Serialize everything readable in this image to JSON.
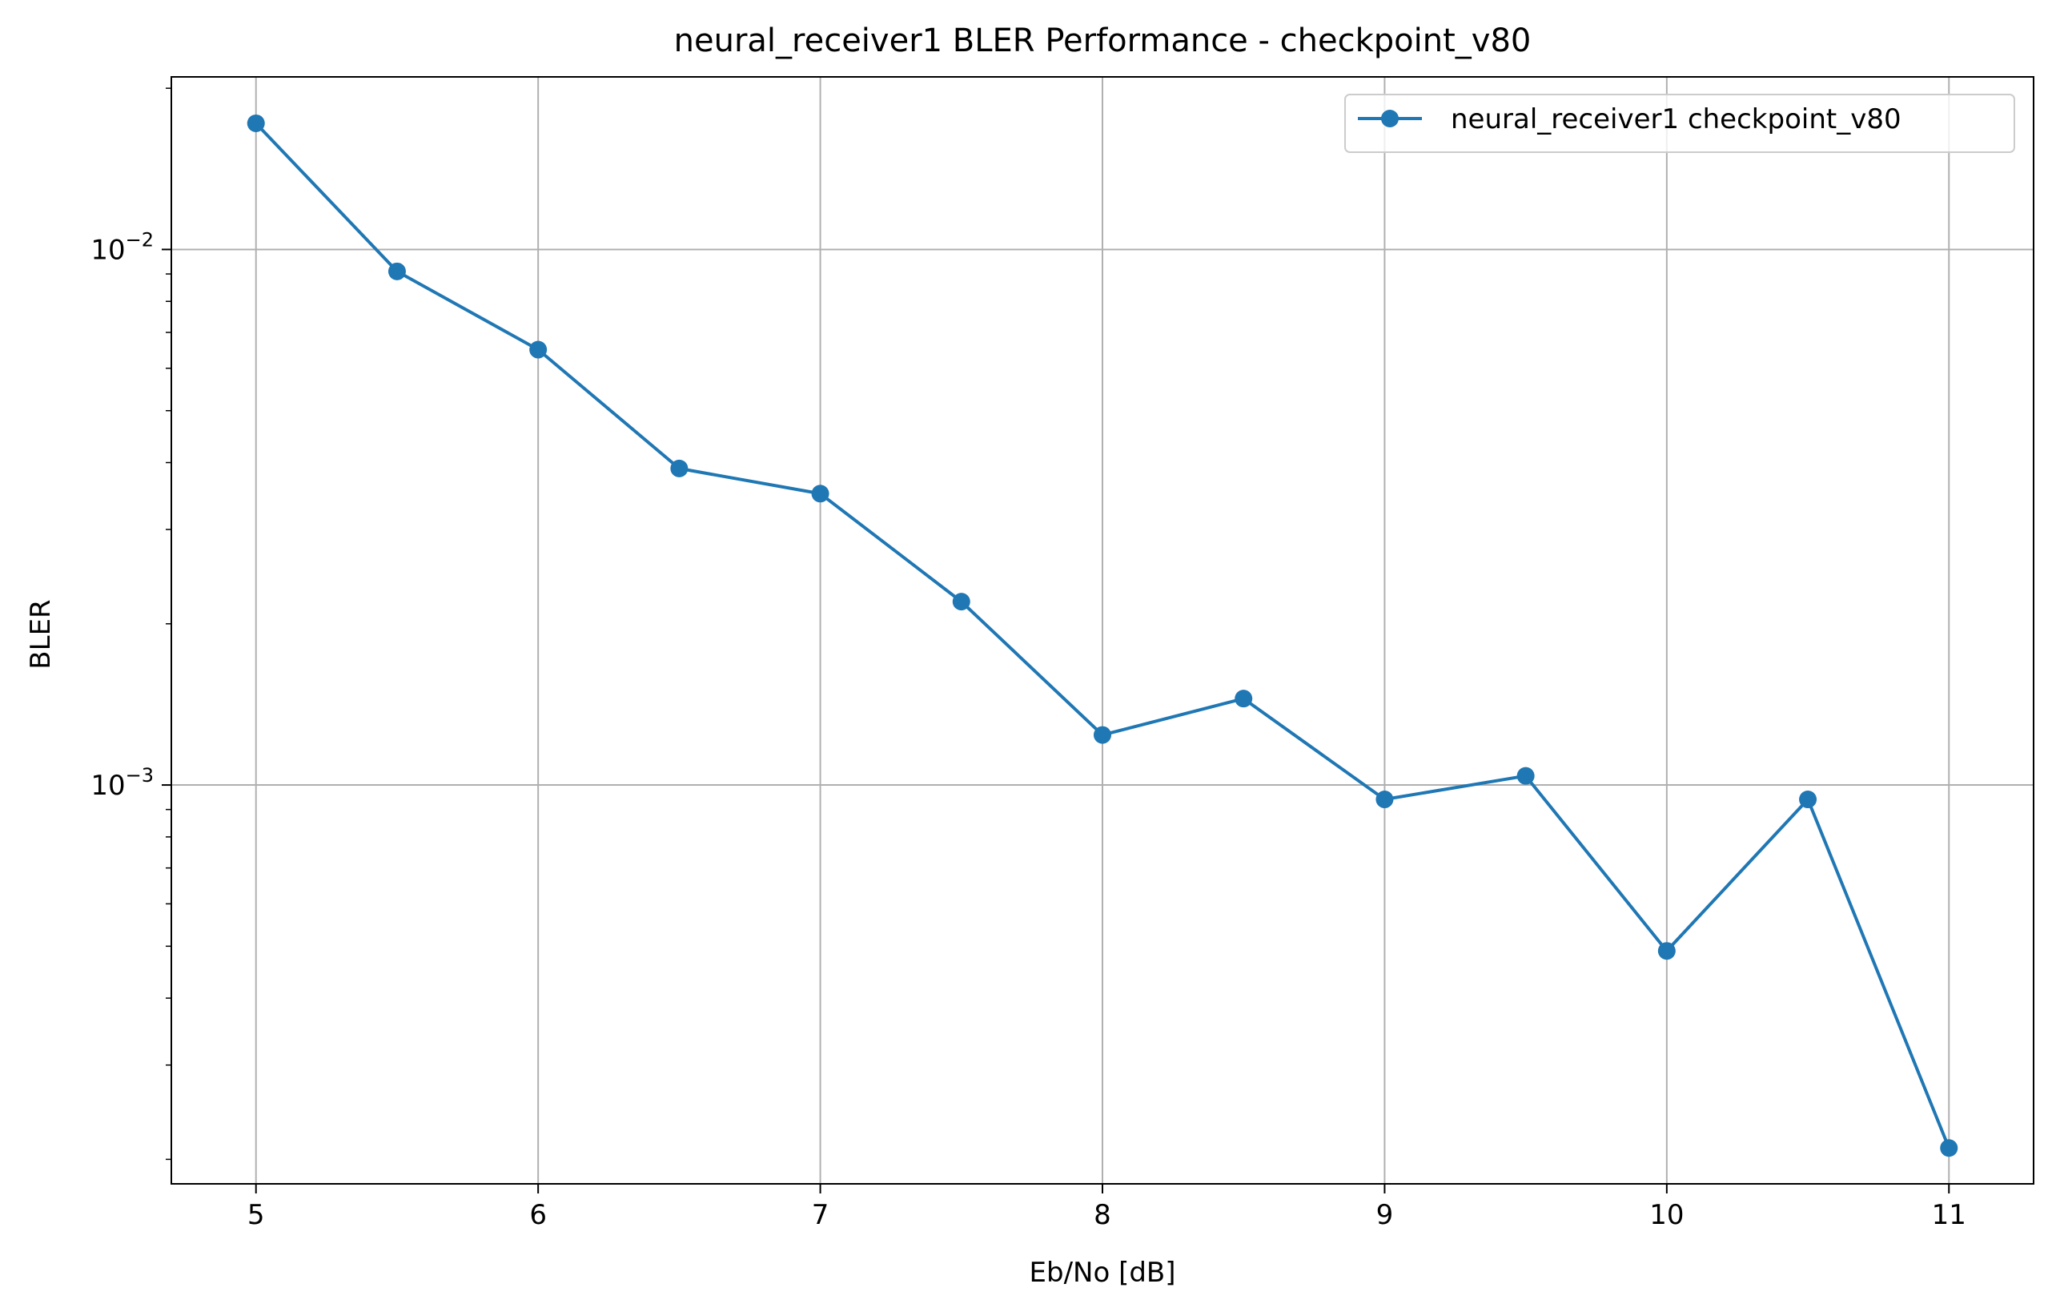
{
  "chart_data": {
    "type": "line",
    "title": "neural_receiver1 BLER Performance - checkpoint_v80",
    "xlabel": "Eb/No [dB]",
    "ylabel": "BLER",
    "yscale": "log",
    "xlim": [
      4.7,
      11.3
    ],
    "ylim": [
      0.00018,
      0.021
    ],
    "xticks": [
      5,
      6,
      7,
      8,
      9,
      10,
      11
    ],
    "xtick_labels": [
      "5",
      "6",
      "7",
      "8",
      "9",
      "10",
      "11"
    ],
    "yticks_major": [
      0.001,
      0.01
    ],
    "yticks_minor": [
      0.0002,
      0.0003,
      0.0004,
      0.0005,
      0.0006,
      0.0007,
      0.0008,
      0.0009,
      0.002,
      0.003,
      0.004,
      0.005,
      0.006,
      0.007,
      0.008,
      0.009,
      0.02
    ],
    "ytick_labels": [
      {
        "base": "10",
        "exp": "−3"
      },
      {
        "base": "10",
        "exp": "−2"
      }
    ],
    "grid": true,
    "legend_position": "top-right",
    "x": [
      5,
      5.5,
      6,
      6.5,
      7,
      7.5,
      8,
      8.5,
      9,
      9.5,
      10,
      10.5,
      11
    ],
    "series": [
      {
        "name": "neural_receiver1 checkpoint_v80",
        "color": "#1f77b4",
        "marker": "circle",
        "values": [
          0.0172,
          0.0091,
          0.0065,
          0.0039,
          0.0035,
          0.0022,
          0.00124,
          0.00145,
          0.00094,
          0.00104,
          0.00049,
          0.00094,
          0.00021
        ]
      }
    ]
  }
}
